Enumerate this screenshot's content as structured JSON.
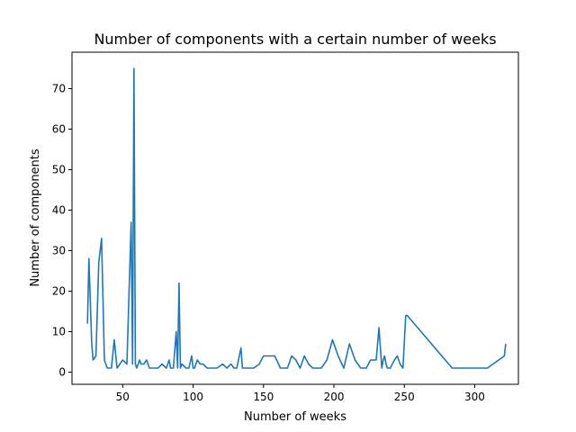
{
  "chart_data": {
    "type": "line",
    "title": "Number of components with a certain number of weeks",
    "xlabel": "Number of weeks",
    "ylabel": "Number of components",
    "xlim": [
      14,
      331
    ],
    "ylim": [
      -3,
      79
    ],
    "xticks": [
      50,
      100,
      150,
      200,
      250,
      300
    ],
    "yticks": [
      0,
      10,
      20,
      30,
      40,
      50,
      60,
      70
    ],
    "grid": false,
    "series": [
      {
        "color": "#1f77b4",
        "x": [
          25,
          26,
          28,
          29,
          31,
          33,
          35,
          37,
          39,
          41,
          42,
          44,
          46,
          48,
          50,
          53,
          56,
          57,
          58,
          59,
          60,
          62,
          63,
          65,
          67,
          69,
          71,
          72,
          75,
          78,
          81,
          83,
          84,
          86,
          88,
          89,
          90,
          91,
          92,
          95,
          97,
          99,
          100,
          101,
          103,
          105,
          107,
          110,
          113,
          117,
          121,
          124,
          127,
          129,
          131,
          134,
          135,
          136,
          139,
          143,
          147,
          150,
          154,
          158,
          162,
          164,
          167,
          170,
          173,
          176,
          179,
          182,
          185,
          188,
          191,
          195,
          199,
          203,
          207,
          211,
          215,
          219,
          223,
          226,
          228,
          230,
          232,
          234,
          235,
          236,
          237,
          238,
          240,
          243,
          245,
          247,
          249,
          251,
          252,
          284,
          309,
          321,
          322
        ],
        "values": [
          12,
          28,
          7,
          3,
          4,
          27,
          33,
          3,
          1,
          1,
          1,
          8,
          1,
          2,
          3,
          2,
          37,
          2,
          75,
          2,
          1,
          3,
          2,
          2,
          3,
          1,
          1,
          1,
          1,
          2,
          1,
          3,
          1,
          1,
          10,
          1,
          22,
          1,
          2,
          1,
          1,
          4,
          1,
          1,
          3,
          2,
          2,
          1,
          1,
          1,
          2,
          1,
          2,
          1,
          1,
          6,
          1,
          1,
          1,
          1,
          2,
          4,
          4,
          4,
          1,
          1,
          1,
          4,
          3,
          1,
          4,
          2,
          1,
          1,
          1,
          3,
          8,
          4,
          1,
          7,
          3,
          1,
          1,
          3,
          3,
          3,
          11,
          1,
          3,
          4,
          2,
          1,
          1,
          3,
          4,
          2,
          1,
          14,
          14,
          1,
          1,
          4,
          7
        ]
      }
    ]
  }
}
